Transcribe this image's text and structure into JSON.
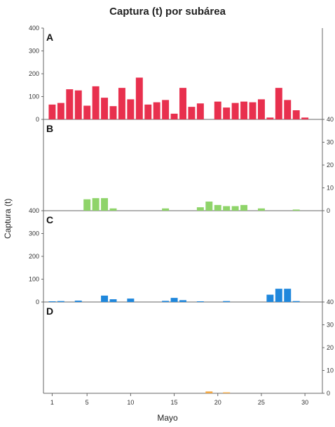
{
  "chart_data": {
    "type": "bar",
    "title": "Captura (t) por subárea",
    "xlabel": "Mayo",
    "ylabel": "Captura (t)",
    "x_ticks": [
      "1",
      "5",
      "10",
      "15",
      "20",
      "25",
      "30"
    ],
    "xlim": [
      0,
      32
    ],
    "panels": [
      {
        "label": "A",
        "color": "#e8304e",
        "ylim": [
          0,
          400
        ],
        "y_ticks": [
          "0",
          "100",
          "200",
          "300",
          "400"
        ],
        "right_ticks": [],
        "days": [
          1,
          2,
          3,
          4,
          5,
          6,
          7,
          8,
          9,
          10,
          11,
          12,
          13,
          14,
          15,
          16,
          17,
          18,
          20,
          21,
          22,
          23,
          24,
          25,
          26,
          27,
          28,
          29,
          30
        ],
        "values": [
          65,
          72,
          132,
          127,
          60,
          145,
          95,
          58,
          138,
          88,
          183,
          65,
          75,
          85,
          25,
          138,
          55,
          70,
          78,
          52,
          72,
          78,
          75,
          88,
          8,
          138,
          85,
          40,
          8
        ]
      },
      {
        "label": "B",
        "color": "#8fd46a",
        "ylim": [
          0,
          40
        ],
        "y_ticks": [],
        "right_ticks": [
          "0",
          "10",
          "20",
          "30",
          "40"
        ],
        "days": [
          5,
          6,
          7,
          8,
          14,
          18,
          19,
          20,
          21,
          22,
          23,
          25,
          29
        ],
        "values": [
          5,
          5.5,
          5.5,
          1,
          1,
          1.5,
          4,
          2.5,
          2,
          2,
          2.5,
          1,
          0.5
        ]
      },
      {
        "label": "C",
        "color": "#1f87dc",
        "ylim": [
          0,
          400
        ],
        "y_ticks": [
          "0",
          "100",
          "200",
          "300",
          "400"
        ],
        "right_ticks": [],
        "days": [
          1,
          2,
          4,
          7,
          8,
          10,
          14,
          15,
          16,
          18,
          21,
          26,
          27,
          28,
          29
        ],
        "values": [
          3,
          4,
          6,
          28,
          12,
          15,
          5,
          18,
          8,
          3,
          4,
          32,
          58,
          58,
          4
        ]
      },
      {
        "label": "D",
        "color": "#f2a640",
        "ylim": [
          0,
          40
        ],
        "y_ticks": [],
        "right_ticks": [
          "0",
          "10",
          "20",
          "30",
          "40"
        ],
        "days": [
          19,
          21
        ],
        "values": [
          0.8,
          0.4
        ]
      }
    ]
  }
}
